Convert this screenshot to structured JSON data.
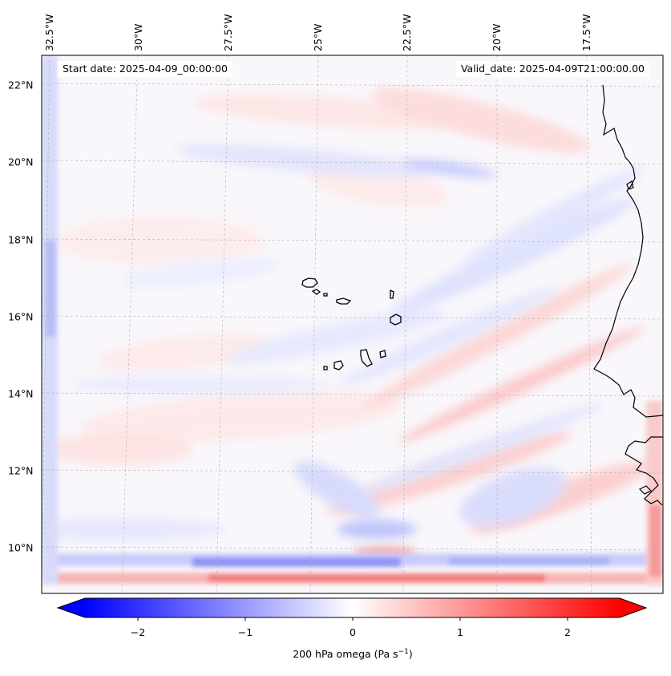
{
  "header": {
    "start_date": "Start date: 2025-04-09_00:00:00",
    "valid_date": "Valid_date: 2025-04-09T21:00:00.00"
  },
  "axes": {
    "lat_labels": [
      "22°N",
      "20°N",
      "18°N",
      "16°N",
      "14°N",
      "12°N",
      "10°N"
    ],
    "lon_labels": [
      "32.5°W",
      "30°W",
      "27.5°W",
      "25°W",
      "22.5°W",
      "20°W",
      "17.5°W"
    ]
  },
  "colorbar": {
    "title": "200 hPa omega (Pa s",
    "title_sup": "−1",
    "title_close": ")",
    "ticks": [
      "−2",
      "−1",
      "0",
      "1",
      "2"
    ],
    "range": [
      -2.5,
      2.5
    ],
    "cmap": "bwr",
    "min_color": "#0000ff",
    "mid_color": "#ffffff",
    "max_color": "#ff0000"
  },
  "map": {
    "coastline_color": "#000000",
    "gridline_color": "#b0b0b0",
    "islands": [
      "Santo Antão",
      "São Vicente",
      "Santa Luzia",
      "São Nicolau",
      "Sal",
      "Boa Vista",
      "Maio",
      "Santiago",
      "Fogo",
      "Brava"
    ],
    "mainland": "West African coast"
  }
}
